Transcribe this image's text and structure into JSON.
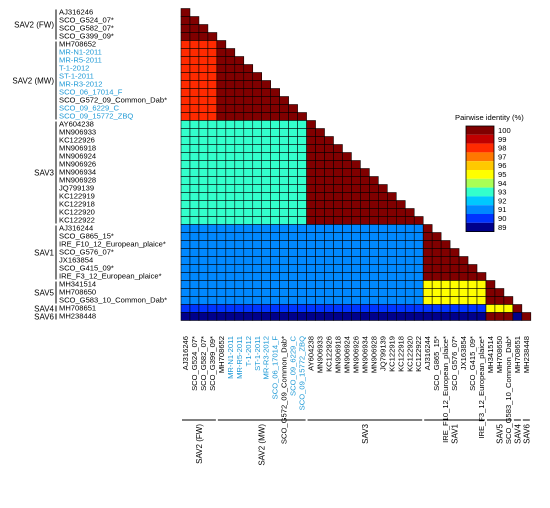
{
  "chart_data": {
    "type": "heatmap",
    "layout": "lower-triangle",
    "title": "",
    "legend": {
      "title": "Pairwise identity (%)",
      "placement": "right",
      "ticks": [
        100,
        99,
        98,
        97,
        96,
        95,
        94,
        93,
        92,
        91,
        90,
        89
      ],
      "colors": {
        "100": "#800000",
        "99": "#c00000",
        "98": "#ff2a00",
        "97": "#ff7800",
        "96": "#ffc800",
        "95": "#ffff00",
        "94": "#aaff55",
        "93": "#33ffcc",
        "92": "#00c8ff",
        "91": "#0088ff",
        "90": "#0033ff",
        "89": "#00008b"
      }
    },
    "labels": [
      {
        "name": "AJ316246",
        "group": "SAV2 (FW)",
        "highlight": false
      },
      {
        "name": "SCO_G524_07*",
        "group": "SAV2 (FW)",
        "highlight": false
      },
      {
        "name": "SCO_G582_07*",
        "group": "SAV2 (FW)",
        "highlight": false
      },
      {
        "name": "SCO_G399_09*",
        "group": "SAV2 (FW)",
        "highlight": false
      },
      {
        "name": "MH708652",
        "group": "SAV2 (MW)",
        "highlight": false
      },
      {
        "name": "MR-N1-2011",
        "group": "SAV2 (MW)",
        "highlight": true
      },
      {
        "name": "MR-R5-2011",
        "group": "SAV2 (MW)",
        "highlight": true
      },
      {
        "name": "T-1-2012",
        "group": "SAV2 (MW)",
        "highlight": true
      },
      {
        "name": "ST-1-2011",
        "group": "SAV2 (MW)",
        "highlight": true
      },
      {
        "name": "MR-R3-2012",
        "group": "SAV2 (MW)",
        "highlight": true
      },
      {
        "name": "SCO_06_17014_F",
        "group": "SAV2 (MW)",
        "highlight": true
      },
      {
        "name": "SCO_G572_09_Common_Dab*",
        "group": "SAV2 (MW)",
        "highlight": false
      },
      {
        "name": "SCO_09_6229_C",
        "group": "SAV2 (MW)",
        "highlight": true
      },
      {
        "name": "SCO_09_15772_ZBQ",
        "group": "SAV2 (MW)",
        "highlight": true
      },
      {
        "name": "AY604238",
        "group": "SAV3",
        "highlight": false
      },
      {
        "name": "MN906933",
        "group": "SAV3",
        "highlight": false
      },
      {
        "name": "KC122926",
        "group": "SAV3",
        "highlight": false
      },
      {
        "name": "MN906918",
        "group": "SAV3",
        "highlight": false
      },
      {
        "name": "MN906924",
        "group": "SAV3",
        "highlight": false
      },
      {
        "name": "MN906926",
        "group": "SAV3",
        "highlight": false
      },
      {
        "name": "MN906934",
        "group": "SAV3",
        "highlight": false
      },
      {
        "name": "MN906928",
        "group": "SAV3",
        "highlight": false
      },
      {
        "name": "JQ799139",
        "group": "SAV3",
        "highlight": false
      },
      {
        "name": "KC122919",
        "group": "SAV3",
        "highlight": false
      },
      {
        "name": "KC122918",
        "group": "SAV3",
        "highlight": false
      },
      {
        "name": "KC122920",
        "group": "SAV3",
        "highlight": false
      },
      {
        "name": "KC122922",
        "group": "SAV3",
        "highlight": false
      },
      {
        "name": "AJ316244",
        "group": "SAV1",
        "highlight": false
      },
      {
        "name": "SCO_G865_15*",
        "group": "SAV1",
        "highlight": false
      },
      {
        "name": "IRE_F10_12_European_plaice*",
        "group": "SAV1",
        "highlight": false
      },
      {
        "name": "SCO_G576_07*",
        "group": "SAV1",
        "highlight": false
      },
      {
        "name": "JX163854",
        "group": "SAV1",
        "highlight": false
      },
      {
        "name": "SCO_G415_09*",
        "group": "SAV1",
        "highlight": false
      },
      {
        "name": "IRE_F3_12_European_plaice*",
        "group": "SAV1",
        "highlight": false
      },
      {
        "name": "MH341514",
        "group": "SAV5",
        "highlight": false
      },
      {
        "name": "MH708650",
        "group": "SAV5",
        "highlight": false
      },
      {
        "name": "SCO_G583_10_Common_Dab*",
        "group": "SAV5",
        "highlight": false
      },
      {
        "name": "MH708651",
        "group": "SAV4",
        "highlight": false
      },
      {
        "name": "MH238448",
        "group": "SAV6",
        "highlight": false
      }
    ],
    "groups": [
      "SAV2 (FW)",
      "SAV2 (MW)",
      "SAV3",
      "SAV1",
      "SAV5",
      "SAV4",
      "SAV6"
    ],
    "identity_blocks": [
      {
        "rows": "SAV2 (FW)",
        "cols": "SAV2 (FW)",
        "value": 100
      },
      {
        "rows": "SAV2 (MW)",
        "cols": "SAV2 (FW)",
        "value": 98
      },
      {
        "rows": "SAV2 (MW)",
        "cols": "SAV2 (MW)",
        "value": 100
      },
      {
        "rows": "SAV3",
        "cols": "SAV2",
        "value": 93
      },
      {
        "rows": "SAV3",
        "cols": "SAV3",
        "value": 100
      },
      {
        "rows": "SAV1",
        "cols": "SAV2",
        "value": 91
      },
      {
        "rows": "SAV1",
        "cols": "SAV3",
        "value": 91
      },
      {
        "rows": "SAV1",
        "cols": "SAV1",
        "value": 100
      },
      {
        "rows": "SAV5",
        "cols": "SAV2",
        "value": 91
      },
      {
        "rows": "SAV5",
        "cols": "SAV3",
        "value": 91
      },
      {
        "rows": "SAV5",
        "cols": "SAV1",
        "value": 95
      },
      {
        "rows": "SAV5",
        "cols": "SAV5",
        "value": 100
      },
      {
        "rows": "SAV4",
        "cols": "SAV1-SAV3",
        "value": 90
      },
      {
        "rows": "SAV4",
        "cols": "SAV5",
        "value": 95
      },
      {
        "rows": "SAV4",
        "cols": "SAV4",
        "value": 100
      },
      {
        "rows": "SAV6",
        "cols": "SAV1-SAV4",
        "value": 89
      },
      {
        "rows": "SAV6",
        "cols": "SAV6",
        "value": 100
      }
    ]
  }
}
